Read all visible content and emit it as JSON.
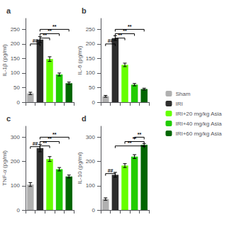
{
  "chart_data": [
    {
      "type": "bar",
      "title": "a",
      "ylabel": "IL-1β (pg/ml)",
      "categories": [
        "Sham",
        "IRI",
        "IRI+20 mg/kg Asia",
        "IRI+40 mg/kg Asia",
        "IRI+60 mg/kg Asia"
      ],
      "values": [
        30,
        215,
        148,
        95,
        65
      ],
      "errors": [
        4,
        10,
        8,
        5,
        4
      ],
      "colors": [
        "#b0b0b0",
        "#2d2d2d",
        "#66ff00",
        "#22cc00",
        "#006600"
      ],
      "ylim": [
        0,
        287.5
      ],
      "yticks": [
        0,
        50,
        100,
        150,
        200,
        250
      ],
      "grid": false,
      "tick_labels": "y",
      "legend": "right",
      "annotations": [
        {
          "text": "##",
          "x": [
            "Sham",
            "IRI"
          ],
          "y": 200
        },
        {
          "text": "**",
          "x": [
            "IRI",
            "IRI+20 mg/kg Asia"
          ],
          "y": 220
        },
        {
          "text": "**",
          "x": [
            "IRI",
            "IRI+40 mg/kg Asia"
          ],
          "y": 235
        },
        {
          "text": "**",
          "x": [
            "IRI",
            "IRI+60 mg/kg Asia"
          ],
          "y": 250
        }
      ]
    },
    {
      "type": "bar",
      "title": "b",
      "ylabel": "IL-6 (pg/ml)",
      "categories": [
        "Sham",
        "IRI",
        "IRI+20 mg/kg Asia",
        "IRI+40 mg/kg Asia",
        "IRI+60 mg/kg Asia"
      ],
      "values": [
        20,
        220,
        128,
        60,
        45
      ],
      "errors": [
        3,
        8,
        6,
        4,
        3
      ],
      "colors": [
        "#b0b0b0",
        "#2d2d2d",
        "#66ff00",
        "#22cc00",
        "#006600"
      ],
      "ylim": [
        0,
        287.5
      ],
      "yticks": [
        0,
        50,
        100,
        150,
        200,
        250
      ],
      "grid": false,
      "tick_labels": "y",
      "legend": "right",
      "annotations": [
        {
          "text": "##",
          "x": [
            "Sham",
            "IRI"
          ],
          "y": 200
        },
        {
          "text": "**",
          "x": [
            "IRI",
            "IRI+20 mg/kg Asia"
          ],
          "y": 220
        },
        {
          "text": "**",
          "x": [
            "IRI",
            "IRI+40 mg/kg Asia"
          ],
          "y": 235
        },
        {
          "text": "**",
          "x": [
            "IRI",
            "IRI+60 mg/kg Asia"
          ],
          "y": 250
        }
      ]
    },
    {
      "type": "bar",
      "title": "c",
      "ylabel": "TNF-α (pg/ml)",
      "categories": [
        "Sham",
        "IRI",
        "IRI+20 mg/kg Asia",
        "IRI+40 mg/kg Asia",
        "IRI+60 mg/kg Asia"
      ],
      "values": [
        105,
        255,
        210,
        168,
        138
      ],
      "errors": [
        8,
        15,
        10,
        7,
        6
      ],
      "colors": [
        "#b0b0b0",
        "#2d2d2d",
        "#66ff00",
        "#22cc00",
        "#006600"
      ],
      "ylim": [
        0,
        345
      ],
      "yticks": [
        0,
        100,
        200,
        300
      ],
      "grid": false,
      "tick_labels": "y",
      "legend": "right",
      "annotations": [
        {
          "text": "##",
          "x": [
            "Sham",
            "IRI"
          ],
          "y": 261
        },
        {
          "text": "**",
          "x": [
            "IRI",
            "IRI+20 mg/kg Asia"
          ],
          "y": 264
        },
        {
          "text": "**",
          "x": [
            "IRI",
            "IRI+40 mg/kg Asia"
          ],
          "y": 282
        },
        {
          "text": "**",
          "x": [
            "IRI",
            "IRI+60 mg/kg Asia"
          ],
          "y": 300
        }
      ]
    },
    {
      "type": "bar",
      "title": "d",
      "ylabel": "IL-10 (pg/ml)",
      "categories": [
        "Sham",
        "IRI",
        "IRI+20 mg/kg Asia",
        "IRI+40 mg/kg Asia",
        "IRI+60 mg/kg Asia"
      ],
      "values": [
        45,
        145,
        183,
        220,
        268
      ],
      "errors": [
        5,
        10,
        8,
        8,
        6
      ],
      "colors": [
        "#b0b0b0",
        "#2d2d2d",
        "#66ff00",
        "#22cc00",
        "#006600"
      ],
      "ylim": [
        0,
        345
      ],
      "yticks": [
        0,
        100,
        200,
        300
      ],
      "grid": false,
      "tick_labels": "y",
      "legend": "right",
      "annotations": [
        {
          "text": "##",
          "x": [
            "Sham",
            "IRI"
          ],
          "y": 150
        },
        {
          "text": "**",
          "x": [
            "IRI",
            "IRI+60 mg/kg Asia"
          ],
          "y": 264
        },
        {
          "text": "**",
          "x": [
            "IRI+20 mg/kg Asia",
            "IRI+60 mg/kg Asia"
          ],
          "y": 282
        },
        {
          "text": "**",
          "x": [
            "IRI+40 mg/kg Asia",
            "IRI+60 mg/kg Asia"
          ],
          "y": 300
        }
      ]
    }
  ]
}
